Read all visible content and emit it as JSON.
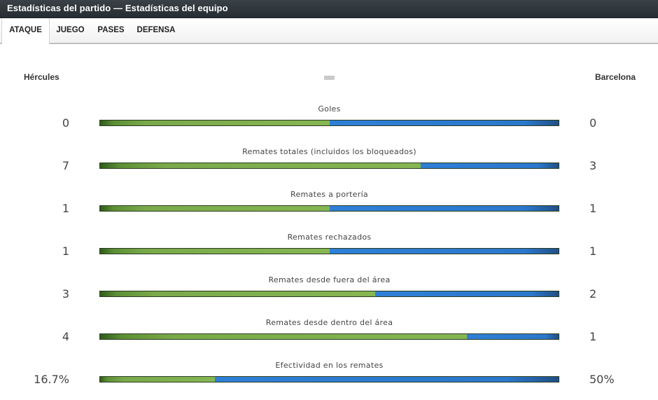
{
  "window": {
    "title": "Estadísticas del partido — Estadísticas del equipo"
  },
  "tabs": [
    {
      "label": "ATAQUE",
      "active": true
    },
    {
      "label": "JUEGO",
      "active": false
    },
    {
      "label": "PASES",
      "active": false
    },
    {
      "label": "DEFENSA",
      "active": false
    }
  ],
  "teams": {
    "home": "Hércules",
    "away": "Barcelona"
  },
  "colors": {
    "home_bar": "#86b652",
    "away_bar": "#2e7fd6",
    "titlebar": "#2f373c"
  },
  "stats": [
    {
      "label": "Goles",
      "home": "0",
      "away": "0",
      "home_share": 0.5
    },
    {
      "label": "Remates totales (incluidos los bloqueados)",
      "home": "7",
      "away": "3",
      "home_share": 0.7
    },
    {
      "label": "Remates a portería",
      "home": "1",
      "away": "1",
      "home_share": 0.5
    },
    {
      "label": "Remates rechazados",
      "home": "1",
      "away": "1",
      "home_share": 0.5
    },
    {
      "label": "Remates desde fuera del área",
      "home": "3",
      "away": "2",
      "home_share": 0.6
    },
    {
      "label": "Remates desde dentro del área",
      "home": "4",
      "away": "1",
      "home_share": 0.8
    },
    {
      "label": "Efectividad en los remates",
      "home": "16.7%",
      "away": "50%",
      "home_share": 0.25
    }
  ]
}
